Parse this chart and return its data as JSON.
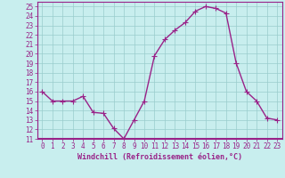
{
  "x": [
    0,
    1,
    2,
    3,
    4,
    5,
    6,
    7,
    8,
    9,
    10,
    11,
    12,
    13,
    14,
    15,
    16,
    17,
    18,
    19,
    20,
    21,
    22,
    23
  ],
  "y": [
    16,
    15,
    15,
    15,
    15.5,
    13.8,
    13.7,
    12.1,
    11.0,
    13.0,
    15.0,
    19.8,
    21.5,
    22.5,
    23.3,
    24.5,
    25.0,
    24.8,
    24.3,
    19.0,
    16.0,
    15.0,
    13.2,
    13.0
  ],
  "line_color": "#992288",
  "marker": "+",
  "marker_size": 4,
  "background_color": "#c8eeee",
  "grid_color": "#99cccc",
  "xlabel": "Windchill (Refroidissement éolien,°C)",
  "xlabel_fontsize": 6.0,
  "ylim": [
    11,
    25.5
  ],
  "xlim": [
    -0.5,
    23.5
  ],
  "yticks": [
    11,
    12,
    13,
    14,
    15,
    16,
    17,
    18,
    19,
    20,
    21,
    22,
    23,
    24,
    25
  ],
  "xticks": [
    0,
    1,
    2,
    3,
    4,
    5,
    6,
    7,
    8,
    9,
    10,
    11,
    12,
    13,
    14,
    15,
    16,
    17,
    18,
    19,
    20,
    21,
    22,
    23
  ],
  "tick_fontsize": 5.5,
  "line_width": 1.0
}
